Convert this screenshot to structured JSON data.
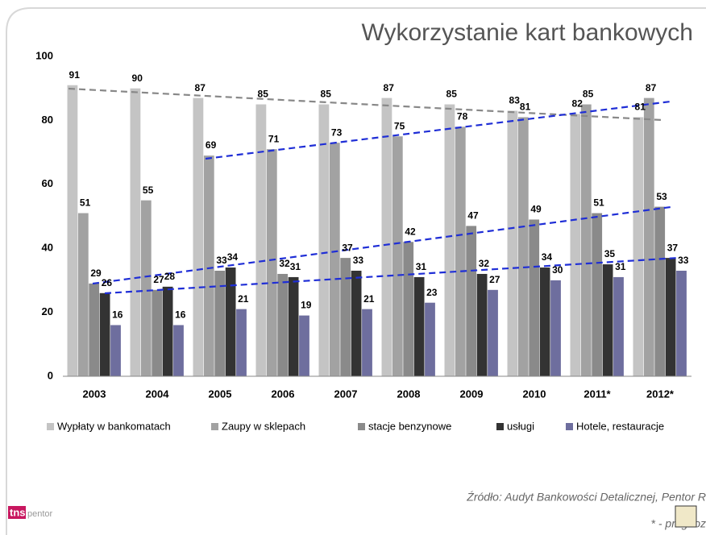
{
  "chart_data": {
    "type": "bar",
    "title": "Wykorzystanie kart bankowych",
    "categories": [
      "2003",
      "2004",
      "2005",
      "2006",
      "2007",
      "2008",
      "2009",
      "2010",
      "2011*",
      "2012*"
    ],
    "series": [
      {
        "name": "Wypłaty w bankomatach",
        "color": "#c4c4c4",
        "values": [
          91,
          90,
          87,
          85,
          85,
          87,
          85,
          83,
          82,
          81
        ]
      },
      {
        "name": "Zaupy w sklepach",
        "color": "#a2a2a2",
        "values": [
          51,
          55,
          69,
          71,
          73,
          75,
          78,
          81,
          85,
          87
        ]
      },
      {
        "name": "stacje benzynowe",
        "color": "#8a8a8a",
        "values": [
          29,
          27,
          33,
          32,
          37,
          42,
          47,
          49,
          51,
          53
        ]
      },
      {
        "name": "usługi",
        "color": "#333333",
        "values": [
          26,
          28,
          34,
          31,
          33,
          31,
          32,
          34,
          35,
          37
        ]
      },
      {
        "name": "Hotele, restauracje",
        "color": "#6e6e9e",
        "values": [
          16,
          16,
          21,
          19,
          21,
          23,
          27,
          30,
          31,
          33
        ]
      }
    ],
    "ylim": [
      0,
      100
    ],
    "yticks": [
      0,
      20,
      40,
      60,
      80,
      100
    ],
    "grid": false,
    "source": "Źródło: Audyt Bankowości Detalicznej, Pentor R",
    "note": "* - prognoz",
    "logo": {
      "main": "tns",
      "sub": "pentor"
    }
  }
}
